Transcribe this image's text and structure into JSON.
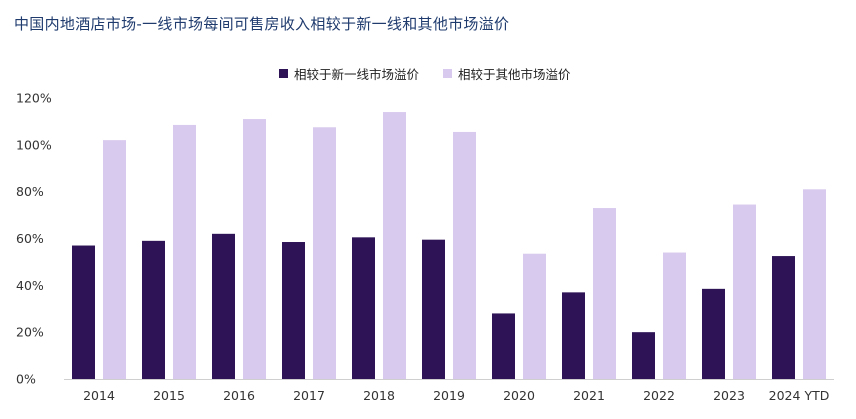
{
  "title": "中国内地酒店市场-一线市场每间可售房收入相较于新一线和其他市场溢价",
  "chart_data": {
    "type": "bar",
    "categories": [
      "2014",
      "2015",
      "2016",
      "2017",
      "2018",
      "2019",
      "2020",
      "2021",
      "2022",
      "2023",
      "2024 YTD"
    ],
    "series": [
      {
        "name": "相较于新一线市场溢价",
        "color": "#2e1456",
        "values": [
          57,
          59,
          62,
          58.5,
          60.5,
          59.5,
          28,
          37,
          20,
          38.5,
          52.5
        ]
      },
      {
        "name": "相较于其他市场溢价",
        "color": "#d8c9ee",
        "values": [
          102,
          108.5,
          111,
          107.5,
          114,
          105.5,
          53.5,
          73,
          54,
          74.5,
          81
        ]
      }
    ],
    "y_ticks": [
      "0%",
      "20%",
      "40%",
      "60%",
      "80%",
      "100%",
      "120%"
    ],
    "ylim": [
      0,
      120
    ],
    "xlabel": "",
    "ylabel": "",
    "grid": false,
    "legend_position": "top-center"
  }
}
